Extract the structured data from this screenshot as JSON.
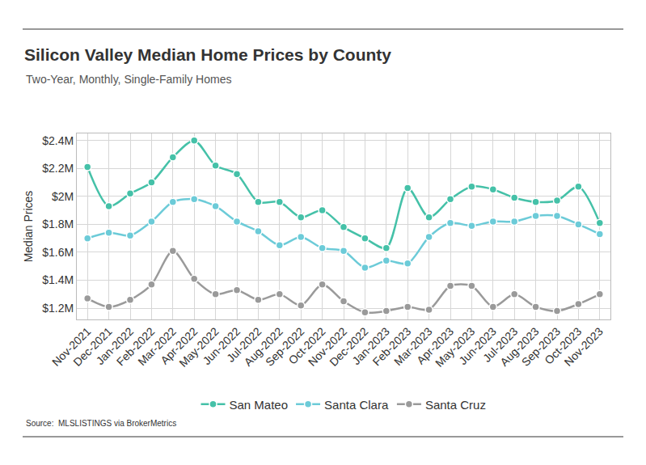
{
  "chart_data": {
    "type": "line",
    "title": "Silicon Valley Median Home Prices by County",
    "subtitle": "Two-Year, Monthly, Single-Family Homes",
    "y_label": "Median Prices",
    "source": "Source:  MLSLISTINGS via BrokerMetrics",
    "categories": [
      "Nov-2021",
      "Dec-2021",
      "Jan-2022",
      "Feb-2022",
      "Mar-2022",
      "Apr-2022",
      "May-2022",
      "Jun-2022",
      "Jul-2022",
      "Aug-2022",
      "Sep-2022",
      "Oct-2022",
      "Nov-2022",
      "Dec-2022",
      "Jan-2023",
      "Feb-2023",
      "Mar-2023",
      "Apr-2023",
      "May-2023",
      "Jun-2023",
      "Jul-2023",
      "Aug-2023",
      "Sep-2023",
      "Oct-2023",
      "Nov-2023"
    ],
    "series": [
      {
        "name": "San Mateo",
        "color": "#45c1a8",
        "values": [
          2.21,
          1.93,
          2.02,
          2.1,
          2.28,
          2.4,
          2.22,
          2.16,
          1.96,
          1.96,
          1.85,
          1.9,
          1.78,
          1.7,
          1.63,
          2.06,
          1.85,
          1.98,
          2.07,
          2.05,
          1.99,
          1.96,
          1.97,
          2.07,
          1.81
        ]
      },
      {
        "name": "Santa Clara",
        "color": "#6ccbd8",
        "values": [
          1.7,
          1.74,
          1.72,
          1.82,
          1.96,
          1.98,
          1.93,
          1.82,
          1.75,
          1.65,
          1.71,
          1.63,
          1.61,
          1.49,
          1.54,
          1.52,
          1.71,
          1.81,
          1.79,
          1.82,
          1.82,
          1.86,
          1.86,
          1.8,
          1.73
        ]
      },
      {
        "name": "Santa Cruz",
        "color": "#9a9a9a",
        "values": [
          1.27,
          1.21,
          1.26,
          1.37,
          1.61,
          1.41,
          1.3,
          1.33,
          1.26,
          1.3,
          1.22,
          1.37,
          1.25,
          1.17,
          1.18,
          1.21,
          1.19,
          1.36,
          1.36,
          1.21,
          1.3,
          1.21,
          1.18,
          1.23,
          1.3
        ]
      }
    ],
    "ylim": [
      1.12,
      2.45
    ],
    "yticks": [
      {
        "value": 1.2,
        "label": "$1.2M"
      },
      {
        "value": 1.4,
        "label": "$1.4M"
      },
      {
        "value": 1.6,
        "label": "$1.6M"
      },
      {
        "value": 1.8,
        "label": "$1.8M"
      },
      {
        "value": 2,
        "label": "$2M"
      },
      {
        "value": 2.2,
        "label": "$2.2M"
      },
      {
        "value": 2.4,
        "label": "$2.4M"
      }
    ],
    "grid": true,
    "legend": "bottom",
    "marker": "circle",
    "line_style": "solid"
  }
}
